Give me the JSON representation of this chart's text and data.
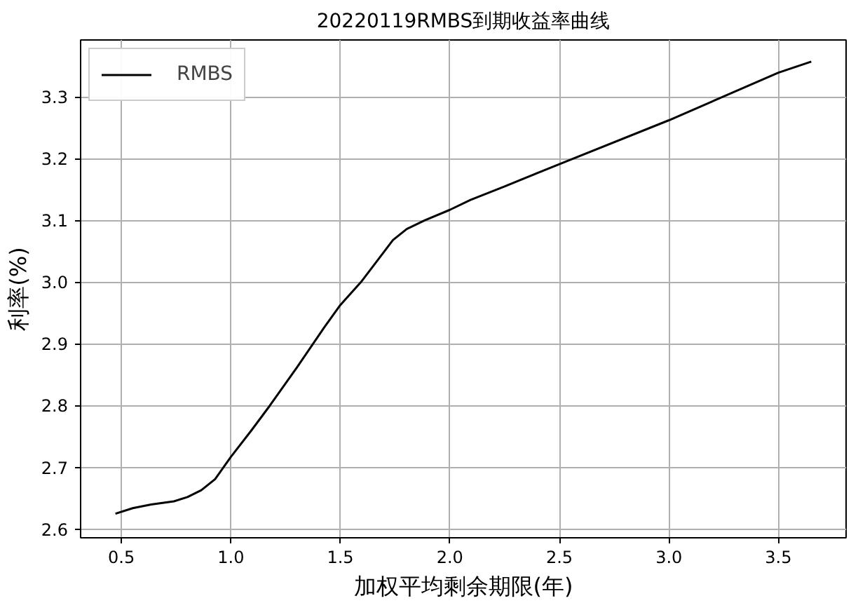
{
  "chart_data": {
    "type": "line",
    "title": "20220119RMBS到期收益率曲线",
    "xlabel": "加权平均剩余期限(年)",
    "ylabel": "利率(%)",
    "x": [
      0.473,
      0.552,
      0.636,
      0.74,
      0.802,
      0.865,
      0.928,
      1.0,
      1.094,
      1.178,
      1.302,
      1.427,
      1.5,
      1.594,
      1.678,
      1.74,
      1.803,
      1.886,
      2.0,
      2.094,
      2.25,
      2.5,
      3.0,
      3.5,
      3.65
    ],
    "series": [
      {
        "name": "RMBS",
        "color": "#000000",
        "values": [
          2.625,
          2.634,
          2.64,
          2.645,
          2.652,
          2.663,
          2.681,
          2.717,
          2.76,
          2.8,
          2.862,
          2.927,
          2.963,
          3.0,
          3.039,
          3.068,
          3.086,
          3.1,
          3.117,
          3.133,
          3.155,
          3.191,
          3.262,
          3.339,
          3.357
        ]
      }
    ],
    "xlim": [
      0.314,
      3.809
    ],
    "ylim": [
      2.586,
      3.392
    ],
    "xticks": [
      0.5,
      {
        "value": 1,
        "label": "1.0"
      },
      1.5,
      {
        "value": 2,
        "label": "2.0"
      },
      2.5,
      {
        "value": 3,
        "label": "3.0"
      },
      3.5
    ],
    "yticks": [
      2.6,
      2.7,
      2.8,
      2.9,
      {
        "value": 3,
        "label": "3.0"
      },
      3.1,
      3.2,
      3.3
    ],
    "grid": true,
    "legend": "top left"
  }
}
